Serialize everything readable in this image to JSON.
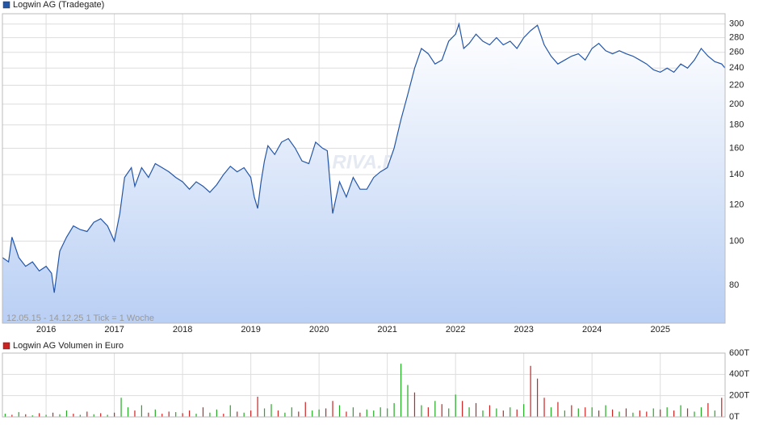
{
  "chart_data": [
    {
      "type": "line",
      "log": true,
      "grid": true,
      "watermark": "ARIVA.DE",
      "footer": "12.05.15 - 14.12.25    1 Tick = 1 Woche",
      "xlim": [
        2015.36,
        2025.95
      ],
      "xticks": [
        2016,
        2017,
        2018,
        2019,
        2020,
        2021,
        2022,
        2023,
        2024,
        2025
      ],
      "ylim": [
        66,
        316
      ],
      "yticks": [
        80,
        100,
        120,
        140,
        160,
        180,
        200,
        220,
        240,
        260,
        280,
        300
      ],
      "x": [
        2015.36,
        2015.45,
        2015.5,
        2015.6,
        2015.7,
        2015.8,
        2015.9,
        2016.0,
        2016.08,
        2016.12,
        2016.2,
        2016.3,
        2016.4,
        2016.5,
        2016.6,
        2016.7,
        2016.8,
        2016.9,
        2017.0,
        2017.08,
        2017.15,
        2017.25,
        2017.3,
        2017.4,
        2017.5,
        2017.6,
        2017.7,
        2017.8,
        2017.9,
        2018.0,
        2018.1,
        2018.2,
        2018.3,
        2018.4,
        2018.5,
        2018.6,
        2018.7,
        2018.8,
        2018.9,
        2019.0,
        2019.05,
        2019.1,
        2019.15,
        2019.2,
        2019.25,
        2019.35,
        2019.45,
        2019.55,
        2019.65,
        2019.75,
        2019.85,
        2019.95,
        2020.05,
        2020.12,
        2020.2,
        2020.3,
        2020.4,
        2020.5,
        2020.6,
        2020.7,
        2020.8,
        2020.9,
        2021.0,
        2021.1,
        2021.2,
        2021.3,
        2021.4,
        2021.5,
        2021.6,
        2021.7,
        2021.8,
        2021.9,
        2022.0,
        2022.05,
        2022.12,
        2022.2,
        2022.3,
        2022.4,
        2022.5,
        2022.6,
        2022.7,
        2022.8,
        2022.9,
        2023.0,
        2023.1,
        2023.2,
        2023.3,
        2023.4,
        2023.5,
        2023.6,
        2023.7,
        2023.8,
        2023.9,
        2024.0,
        2024.1,
        2024.2,
        2024.3,
        2024.4,
        2024.5,
        2024.6,
        2024.7,
        2024.8,
        2024.9,
        2025.0,
        2025.1,
        2025.2,
        2025.3,
        2025.4,
        2025.5,
        2025.6,
        2025.7,
        2025.8,
        2025.9,
        2025.95
      ],
      "series": [
        {
          "name": "Logwin AG (Tradegate)",
          "color": "#2456a8",
          "values": [
            92,
            90,
            102,
            92,
            88,
            90,
            86,
            88,
            85,
            77,
            95,
            102,
            108,
            106,
            105,
            110,
            112,
            108,
            100,
            115,
            138,
            145,
            132,
            145,
            138,
            148,
            145,
            142,
            138,
            135,
            130,
            135,
            132,
            128,
            133,
            140,
            146,
            142,
            145,
            138,
            125,
            118,
            135,
            150,
            162,
            155,
            165,
            168,
            160,
            150,
            148,
            165,
            160,
            158,
            115,
            135,
            125,
            138,
            130,
            130,
            138,
            142,
            145,
            160,
            185,
            210,
            240,
            265,
            258,
            245,
            250,
            275,
            285,
            300,
            265,
            272,
            285,
            275,
            270,
            280,
            270,
            275,
            265,
            280,
            290,
            298,
            270,
            255,
            245,
            250,
            255,
            258,
            250,
            265,
            272,
            262,
            258,
            262,
            258,
            255,
            250,
            245,
            238,
            235,
            240,
            235,
            245,
            240,
            250,
            265,
            255,
            248,
            245,
            240
          ]
        }
      ]
    },
    {
      "type": "bar",
      "grid": true,
      "xlim": [
        2015.36,
        2025.95
      ],
      "xticks": [
        2016,
        2017,
        2018,
        2019,
        2020,
        2021,
        2022,
        2023,
        2024,
        2025
      ],
      "ylim": [
        0,
        600000
      ],
      "yticks": [
        {
          "value": 0,
          "label": "0T"
        },
        {
          "value": 200000,
          "label": "200T"
        },
        {
          "value": 400000,
          "label": "400T"
        },
        {
          "value": 600000,
          "label": "600T"
        }
      ],
      "x": [
        2015.4,
        2015.5,
        2015.6,
        2015.7,
        2015.8,
        2015.9,
        2016.0,
        2016.1,
        2016.2,
        2016.3,
        2016.4,
        2016.5,
        2016.6,
        2016.7,
        2016.8,
        2016.9,
        2017.0,
        2017.1,
        2017.2,
        2017.3,
        2017.4,
        2017.5,
        2017.6,
        2017.7,
        2017.8,
        2017.9,
        2018.0,
        2018.1,
        2018.2,
        2018.3,
        2018.4,
        2018.5,
        2018.6,
        2018.7,
        2018.8,
        2018.9,
        2019.0,
        2019.1,
        2019.2,
        2019.3,
        2019.4,
        2019.5,
        2019.6,
        2019.7,
        2019.8,
        2019.9,
        2020.0,
        2020.1,
        2020.2,
        2020.3,
        2020.4,
        2020.5,
        2020.6,
        2020.7,
        2020.8,
        2020.9,
        2021.0,
        2021.1,
        2021.2,
        2021.3,
        2021.4,
        2021.5,
        2021.6,
        2021.7,
        2021.8,
        2021.9,
        2022.0,
        2022.1,
        2022.2,
        2022.3,
        2022.4,
        2022.5,
        2022.6,
        2022.7,
        2022.8,
        2022.9,
        2023.0,
        2023.1,
        2023.2,
        2023.3,
        2023.4,
        2023.5,
        2023.6,
        2023.7,
        2023.8,
        2023.9,
        2024.0,
        2024.1,
        2024.2,
        2024.3,
        2024.4,
        2024.5,
        2024.6,
        2024.7,
        2024.8,
        2024.9,
        2025.0,
        2025.1,
        2025.2,
        2025.3,
        2025.4,
        2025.5,
        2025.6,
        2025.7,
        2025.8,
        2025.9
      ],
      "series": [
        {
          "name": "Logwin AG Volumen in Euro",
          "color": "#cc2222",
          "values": [
            30000,
            20000,
            45000,
            25000,
            15000,
            35000,
            20000,
            40000,
            25000,
            60000,
            30000,
            20000,
            50000,
            25000,
            35000,
            20000,
            40000,
            180000,
            90000,
            60000,
            110000,
            40000,
            70000,
            30000,
            50000,
            45000,
            35000,
            60000,
            30000,
            90000,
            40000,
            70000,
            30000,
            110000,
            50000,
            40000,
            60000,
            190000,
            80000,
            120000,
            60000,
            40000,
            90000,
            50000,
            140000,
            60000,
            70000,
            80000,
            150000,
            110000,
            50000,
            90000,
            40000,
            70000,
            60000,
            90000,
            80000,
            130000,
            500000,
            300000,
            230000,
            110000,
            90000,
            150000,
            120000,
            80000,
            210000,
            150000,
            90000,
            130000,
            60000,
            110000,
            80000,
            60000,
            90000,
            70000,
            120000,
            480000,
            360000,
            180000,
            90000,
            140000,
            60000,
            110000,
            80000,
            90000,
            90000,
            60000,
            110000,
            70000,
            50000,
            80000,
            40000,
            60000,
            50000,
            80000,
            70000,
            90000,
            60000,
            110000,
            80000,
            50000,
            90000,
            130000,
            60000,
            180000
          ],
          "colors": [
            "#2a2",
            "#c22",
            "#2a2",
            "#c22",
            "#2a2",
            "#c22",
            "#2a2",
            "#c22",
            "#2a2",
            "#2a2",
            "#c22",
            "#2a2",
            "#c22",
            "#2a2",
            "#c22",
            "#2a2",
            "#c22",
            "#2a2",
            "#2a2",
            "#c22",
            "#2a2",
            "#c22",
            "#2a2",
            "#c22",
            "#c22",
            "#2a2",
            "#c22",
            "#c22",
            "#2a2",
            "#c22",
            "#2a2",
            "#2a2",
            "#c22",
            "#2a2",
            "#c22",
            "#2a2",
            "#c22",
            "#c22",
            "#2a2",
            "#2a2",
            "#c22",
            "#2a2",
            "#2a2",
            "#c22",
            "#c22",
            "#2a2",
            "#2a2",
            "#c22",
            "#c22",
            "#2a2",
            "#c22",
            "#2a2",
            "#c22",
            "#2a2",
            "#2a2",
            "#2a2",
            "#2a2",
            "#2a2",
            "#2a2",
            "#2a2",
            "#c22",
            "#2a2",
            "#c22",
            "#2a2",
            "#c22",
            "#2a2",
            "#2a2",
            "#c22",
            "#2a2",
            "#c22",
            "#2a2",
            "#c22",
            "#2a2",
            "#c22",
            "#2a2",
            "#c22",
            "#2a2",
            "#c22",
            "#c22",
            "#c22",
            "#2a2",
            "#c22",
            "#2a2",
            "#c22",
            "#2a2",
            "#c22",
            "#2a2",
            "#c22",
            "#2a2",
            "#c22",
            "#2a2",
            "#c22",
            "#2a2",
            "#c22",
            "#c22",
            "#2a2",
            "#c22",
            "#2a2",
            "#c22",
            "#2a2",
            "#c22",
            "#2a2",
            "#2a2",
            "#c22",
            "#2a2",
            "#c22"
          ]
        }
      ]
    }
  ]
}
